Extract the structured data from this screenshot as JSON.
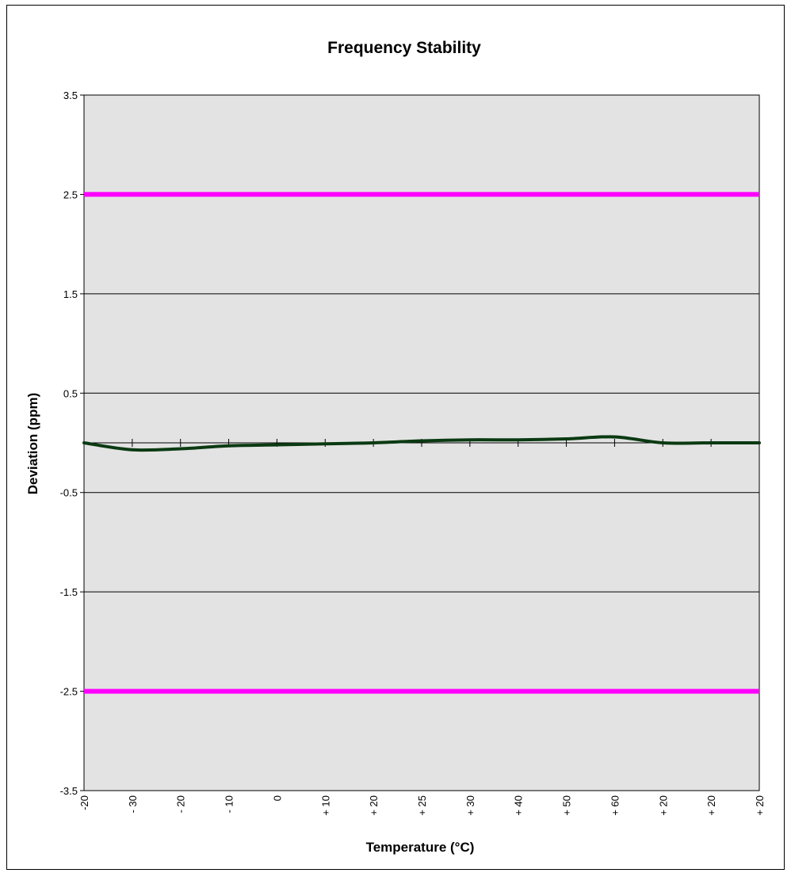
{
  "chart_data": {
    "type": "line",
    "title": "Frequency Stability",
    "xlabel": "Temperature (°C)",
    "ylabel": "Deviation (ppm)",
    "ylim": [
      -3.5,
      3.5
    ],
    "yticks": [
      "3.5",
      "2.5",
      "1.5",
      "0.5",
      "-0.5",
      "-1.5",
      "-2.5",
      "-3.5"
    ],
    "ytick_values": [
      3.5,
      2.5,
      1.5,
      0.5,
      -0.5,
      -1.5,
      -2.5,
      -3.5
    ],
    "categories": [
      "-20",
      "- 30",
      "- 20",
      "- 10",
      "0",
      "+ 10",
      "+ 20",
      "+ 25",
      "+ 30",
      "+ 40",
      "+ 50",
      "+ 60",
      "+ 20",
      "+ 20",
      "+ 20"
    ],
    "grid": true,
    "legend": "none",
    "series": [
      {
        "values": [
          0.0,
          -0.07,
          -0.06,
          -0.03,
          -0.02,
          -0.01,
          0.0,
          0.02,
          0.03,
          0.03,
          0.04,
          0.06,
          0.0,
          0.0,
          0.0
        ],
        "color": "#0a3a12"
      }
    ],
    "reference_lines": [
      {
        "value": 2.5,
        "color": "#ff00ff"
      },
      {
        "value": -2.5,
        "color": "#ff00ff"
      }
    ],
    "colors": {
      "plot_background": "#e3e3e3",
      "gridline": "#000000"
    }
  }
}
